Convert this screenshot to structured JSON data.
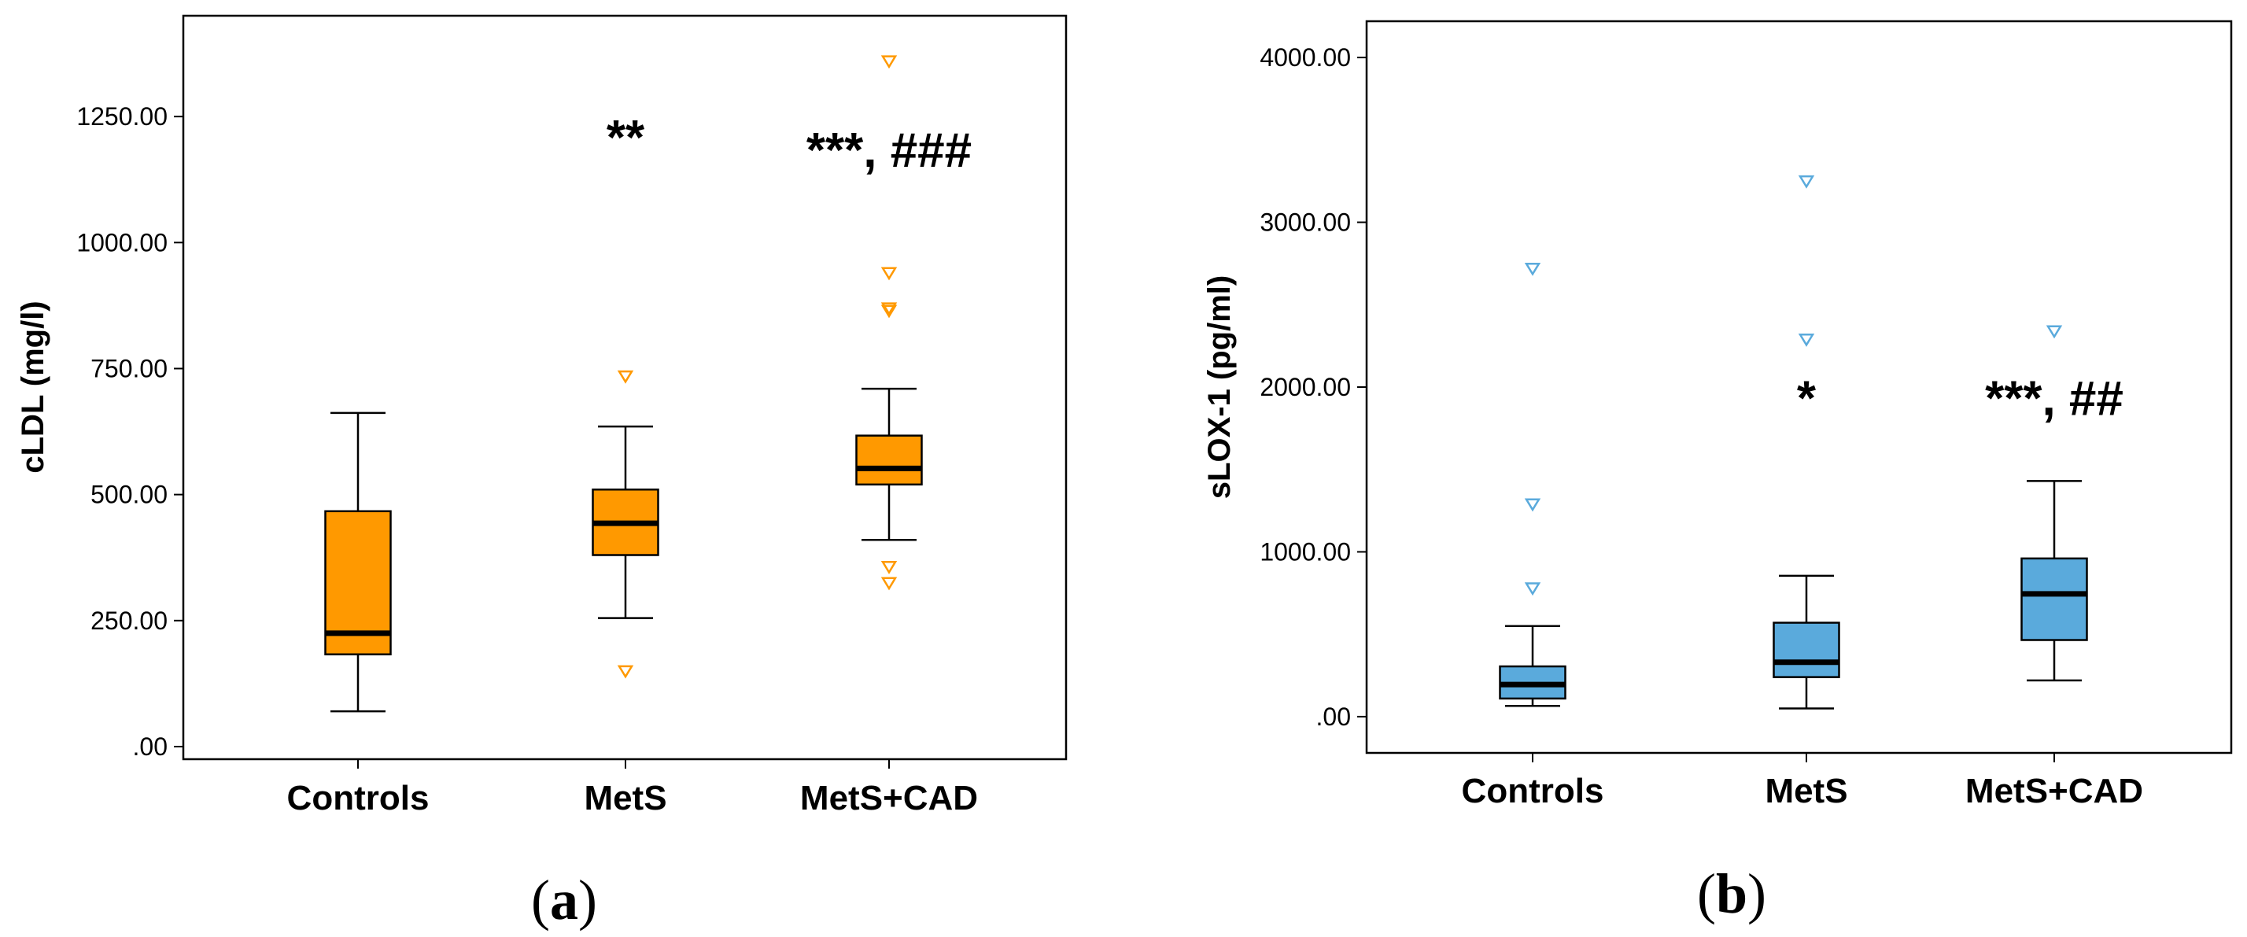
{
  "chart_data": [
    {
      "type": "box",
      "panel_label": "a",
      "xlabel": "",
      "ylabel": "cLDL (mg/l)",
      "ylim": [
        -25,
        1450
      ],
      "yticks": [
        0,
        250,
        500,
        750,
        1000,
        1250
      ],
      "ytick_labels": [
        ".00",
        "250.00",
        "500.00",
        "750.00",
        "1000.00",
        "1250.00"
      ],
      "categories": [
        "Controls",
        "MetS",
        "MetS+CAD"
      ],
      "color": "#FF9900",
      "boxes": [
        {
          "category": "Controls",
          "whisker_low": 70,
          "q1": 183,
          "median": 225,
          "q3": 467,
          "whisker_high": 662,
          "outliers": []
        },
        {
          "category": "MetS",
          "whisker_low": 255,
          "q1": 380,
          "median": 443,
          "q3": 510,
          "whisker_high": 635,
          "outliers": [
            735,
            150
          ]
        },
        {
          "category": "MetS+CAD",
          "whisker_low": 410,
          "q1": 520,
          "median": 552,
          "q3": 617,
          "whisker_high": 710,
          "outliers": [
            1360,
            940,
            870,
            865,
            357,
            325
          ]
        }
      ],
      "annotations": [
        {
          "category": "MetS",
          "text": "**",
          "y": 1175
        },
        {
          "category": "MetS+CAD",
          "text": "***, ###",
          "y": 1150
        }
      ]
    },
    {
      "type": "box",
      "panel_label": "b",
      "xlabel": "",
      "ylabel": "sLOX-1 (pg/ml)",
      "ylim": [
        -220,
        4220
      ],
      "yticks": [
        0,
        1000,
        2000,
        3000,
        4000
      ],
      "ytick_labels": [
        ".00",
        "1000.00",
        "2000.00",
        "3000.00",
        "4000.00"
      ],
      "categories": [
        "Controls",
        "MetS",
        "MetS+CAD"
      ],
      "color": "#5AAADC",
      "boxes": [
        {
          "category": "Controls",
          "whisker_low": 65,
          "q1": 110,
          "median": 195,
          "q3": 305,
          "whisker_high": 550,
          "outliers": [
            2720,
            1290,
            780
          ]
        },
        {
          "category": "MetS",
          "whisker_low": 50,
          "q1": 240,
          "median": 330,
          "q3": 570,
          "whisker_high": 855,
          "outliers": [
            3250,
            2290
          ]
        },
        {
          "category": "MetS+CAD",
          "whisker_low": 220,
          "q1": 465,
          "median": 745,
          "q3": 960,
          "whisker_high": 1430,
          "outliers": [
            2340
          ]
        }
      ],
      "annotations": [
        {
          "category": "MetS",
          "text": "*",
          "y": 1830
        },
        {
          "category": "MetS+CAD",
          "text": "***, ##",
          "y": 1830
        }
      ]
    }
  ]
}
